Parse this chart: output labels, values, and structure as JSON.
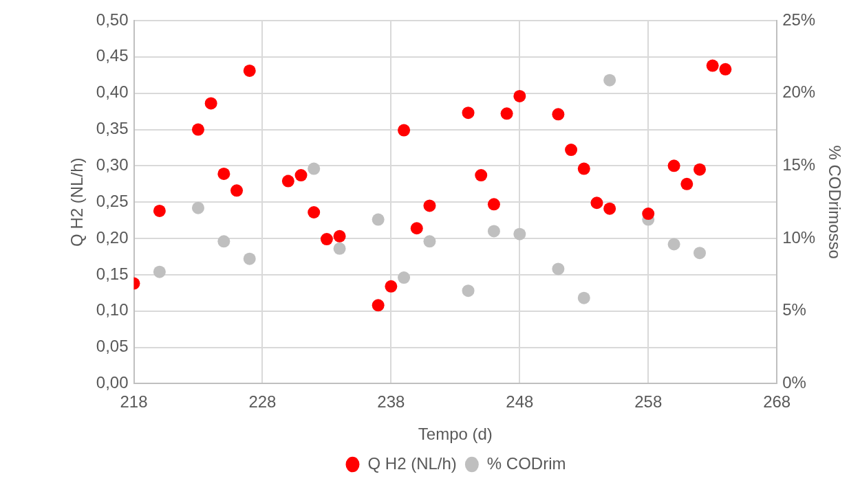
{
  "chart_data": {
    "type": "scatter",
    "xlabel": "Tempo (d)",
    "ylabel": "Q H2 (NL/h)",
    "y2label": "% CODrimosso",
    "xlim": [
      218,
      268
    ],
    "xticks": [
      218,
      228,
      238,
      248,
      258,
      268
    ],
    "ylim": [
      0,
      0.5
    ],
    "yticks": [
      {
        "value": 0,
        "label": "0,00"
      },
      {
        "value": 0.05,
        "label": "0,05"
      },
      {
        "value": 0.1,
        "label": "0,10"
      },
      {
        "value": 0.15,
        "label": "0,15"
      },
      {
        "value": 0.2,
        "label": "0,20"
      },
      {
        "value": 0.25,
        "label": "0,25"
      },
      {
        "value": 0.3,
        "label": "0,30"
      },
      {
        "value": 0.35,
        "label": "0,35"
      },
      {
        "value": 0.4,
        "label": "0,40"
      },
      {
        "value": 0.45,
        "label": "0,45"
      },
      {
        "value": 0.5,
        "label": "0,50"
      }
    ],
    "y2lim": [
      0,
      25
    ],
    "y2ticks": [
      {
        "value": 0,
        "label": "0%"
      },
      {
        "value": 5,
        "label": "5%"
      },
      {
        "value": 10,
        "label": "10%"
      },
      {
        "value": 15,
        "label": "15%"
      },
      {
        "value": 20,
        "label": "20%"
      },
      {
        "value": 25,
        "label": "25%"
      }
    ],
    "grid": true,
    "legend": "bottom",
    "marker": "circle",
    "series": [
      {
        "name": "Q H2 (NL/h)",
        "color": "#ff0000",
        "x": [
          218,
          220,
          223,
          224,
          225,
          226,
          227,
          230,
          231,
          232,
          233,
          234,
          237,
          238,
          239,
          240,
          241,
          244,
          245,
          246,
          247,
          248,
          251,
          252,
          253,
          254,
          255,
          258,
          260,
          261,
          262,
          263,
          264
        ],
        "values": [
          0.138,
          0.238,
          0.35,
          0.386,
          0.289,
          0.266,
          0.431,
          0.279,
          0.287,
          0.236,
          0.199,
          0.203,
          0.108,
          0.134,
          0.349,
          0.214,
          0.245,
          0.373,
          0.287,
          0.247,
          0.372,
          0.396,
          0.371,
          0.322,
          0.296,
          0.249,
          0.241,
          0.234,
          0.3,
          0.275,
          0.295,
          0.438,
          0.433
        ]
      },
      {
        "name": "% CODrim",
        "color": "#bfbfbf",
        "axis": "y2",
        "x": [
          220,
          223,
          225,
          227,
          232,
          234,
          237,
          239,
          241,
          244,
          246,
          248,
          251,
          253,
          255,
          258,
          260,
          262
        ],
        "values": [
          7.7,
          12.1,
          9.8,
          8.6,
          14.8,
          9.3,
          11.3,
          7.3,
          9.8,
          6.4,
          10.5,
          10.3,
          7.9,
          5.9,
          20.9,
          11.3,
          9.6,
          9.0
        ]
      }
    ]
  }
}
